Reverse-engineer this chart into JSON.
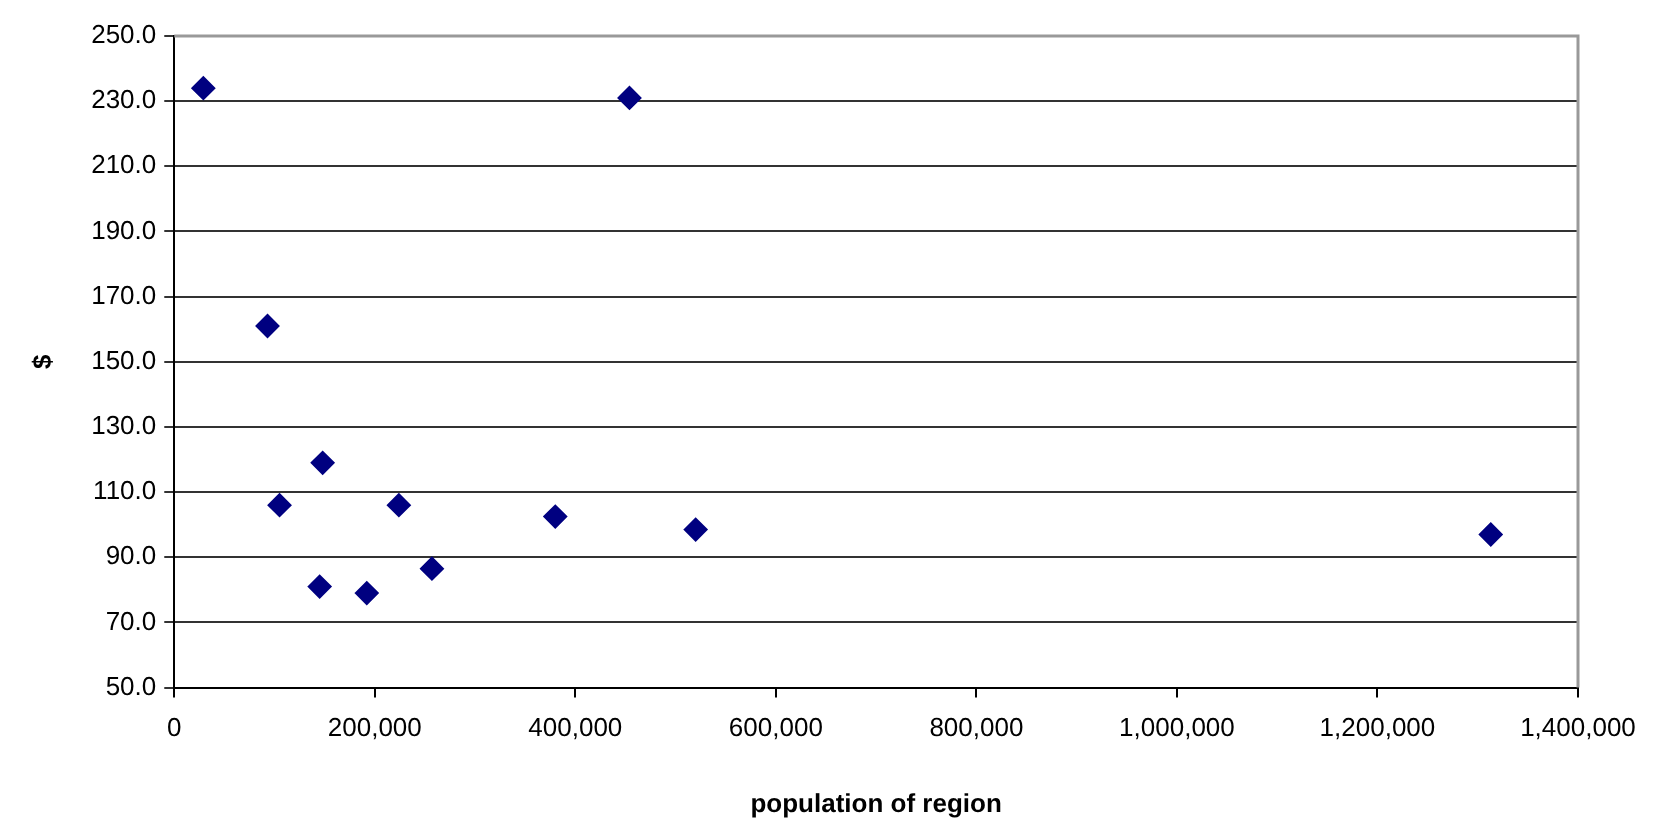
{
  "chart_data": {
    "type": "scatter",
    "xlabel": "population of region",
    "ylabel": "$",
    "x": [
      29000,
      454000,
      93000,
      148000,
      105000,
      224000,
      380000,
      520000,
      145000,
      192000,
      257000,
      1313000
    ],
    "series": [
      {
        "color": "#000080",
        "values": [
          234,
          231,
          161,
          119,
          106,
          106,
          102.5,
          98.5,
          81,
          79,
          86.5,
          97
        ]
      }
    ],
    "xlim": [
      0,
      1400000
    ],
    "xticks": [
      {
        "value": 0,
        "label": "0"
      },
      {
        "value": 200000,
        "label": "200,000"
      },
      {
        "value": 400000,
        "label": "400,000"
      },
      {
        "value": 600000,
        "label": "600,000"
      },
      {
        "value": 800000,
        "label": "800,000"
      },
      {
        "value": 1000000,
        "label": "1,000,000"
      },
      {
        "value": 1200000,
        "label": "1,200,000"
      },
      {
        "value": 1400000,
        "label": "1,400,000"
      }
    ],
    "ylim": [
      50,
      250
    ],
    "yticks": [
      {
        "value": 50,
        "label": "50.0"
      },
      {
        "value": 70,
        "label": "70.0"
      },
      {
        "value": 90,
        "label": "90.0"
      },
      {
        "value": 110,
        "label": "110.0"
      },
      {
        "value": 130,
        "label": "130.0"
      },
      {
        "value": 150,
        "label": "150.0"
      },
      {
        "value": 170,
        "label": "170.0"
      },
      {
        "value": 190,
        "label": "190.0"
      },
      {
        "value": 210,
        "label": "210.0"
      },
      {
        "value": 230,
        "label": "230.0"
      },
      {
        "value": 250,
        "label": "250.0"
      }
    ],
    "grid": "y",
    "marker": "diamond",
    "legend": false
  }
}
